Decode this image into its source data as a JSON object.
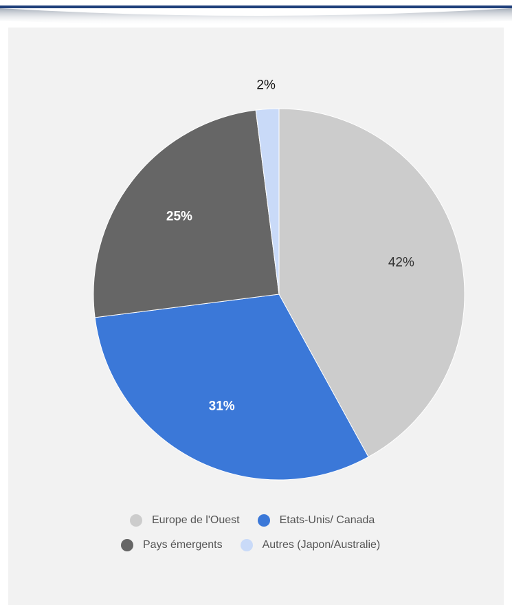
{
  "chart_data": {
    "type": "pie",
    "title": "",
    "slices": [
      {
        "label": "Europe de l'Ouest",
        "value": 42,
        "value_label": "42%",
        "color": "#cccccc",
        "label_color": "#333333"
      },
      {
        "label": "Etats-Unis/ Canada",
        "value": 31,
        "value_label": "31%",
        "color": "#3b78d8",
        "label_color": "#ffffff"
      },
      {
        "label": "Pays émergents",
        "value": 25,
        "value_label": "25%",
        "color": "#666666",
        "label_color": "#ffffff"
      },
      {
        "label": "Autres (Japon/Australie)",
        "value": 2,
        "value_label": "2%",
        "color": "#c9daf8",
        "label_color": "#111111"
      }
    ],
    "start_angle_deg": 0,
    "direction": "clockwise",
    "legend": {
      "placement": "bottom",
      "rows": [
        [
          "Europe de l'Ouest",
          "Etats-Unis/ Canada"
        ],
        [
          "Pays émergents",
          "Autres (Japon/Australie)"
        ]
      ]
    }
  },
  "colors": {
    "panel_background": "#f2f2f2",
    "top_rule": "#1f3f7a"
  }
}
